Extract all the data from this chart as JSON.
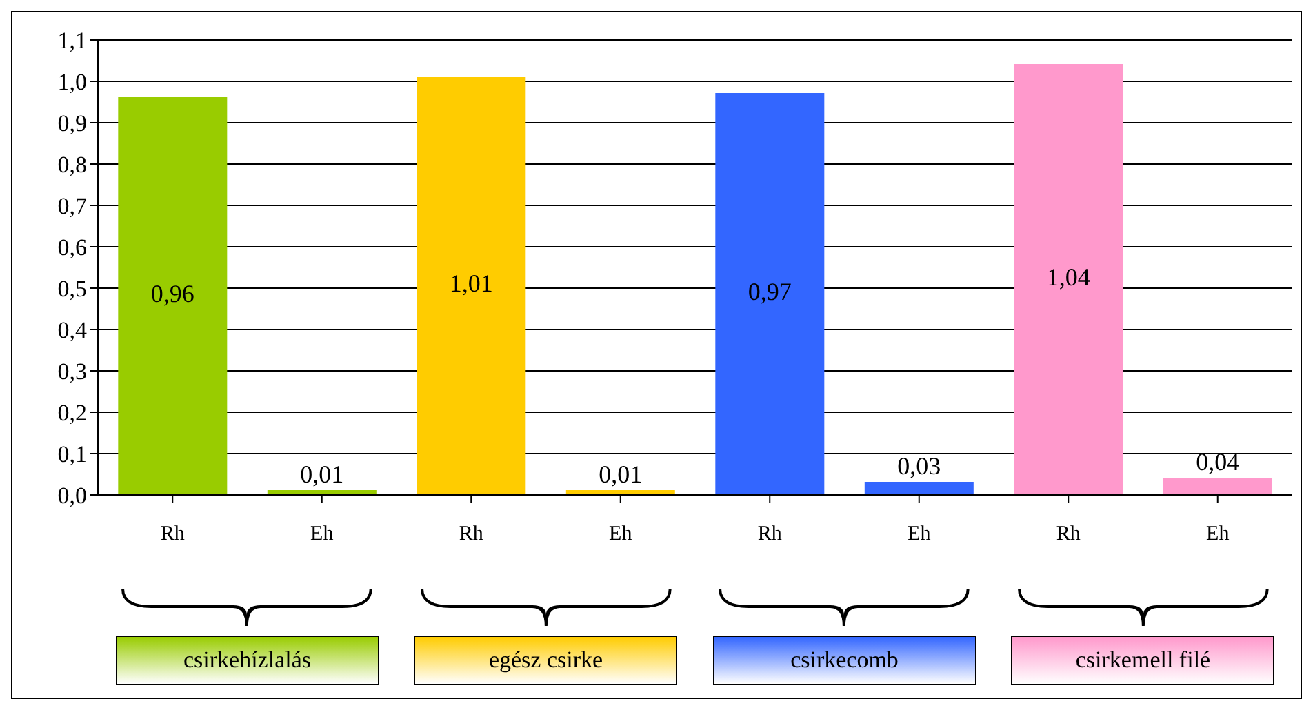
{
  "chart_data": {
    "type": "bar",
    "categories": [
      "Rh",
      "Eh",
      "Rh",
      "Eh",
      "Rh",
      "Eh",
      "Rh",
      "Eh"
    ],
    "series": [
      {
        "name": "csirkehízlalás",
        "color": "#99cc00",
        "values": [
          0.96,
          0.01,
          null,
          null,
          null,
          null,
          null,
          null
        ],
        "value_labels": [
          "0,96",
          "0,01",
          null,
          null,
          null,
          null,
          null,
          null
        ]
      },
      {
        "name": "egész csirke",
        "color": "#ffcc00",
        "values": [
          null,
          null,
          1.01,
          0.01,
          null,
          null,
          null,
          null
        ],
        "value_labels": [
          null,
          null,
          "1,01",
          "0,01",
          null,
          null,
          null,
          null
        ]
      },
      {
        "name": "csirkecomb",
        "color": "#3366ff",
        "values": [
          null,
          null,
          null,
          null,
          0.97,
          0.03,
          null,
          null
        ],
        "value_labels": [
          null,
          null,
          null,
          null,
          "0,97",
          "0,03",
          null,
          null
        ]
      },
      {
        "name": "csirkemell filé",
        "color": "#ff99cc",
        "values": [
          null,
          null,
          null,
          null,
          null,
          null,
          1.04,
          0.04
        ],
        "value_labels": [
          null,
          null,
          null,
          null,
          null,
          null,
          "1,04",
          "0,04"
        ]
      }
    ],
    "stacked": true,
    "grid": "y",
    "legend": "bottom",
    "ylim": [
      0,
      1.1
    ],
    "yticks": [
      {
        "value": 0,
        "label": "0,0"
      },
      {
        "value": 0.1,
        "label": "0,1"
      },
      {
        "value": 0.2,
        "label": "0,2"
      },
      {
        "value": 0.3,
        "label": "0,3"
      },
      {
        "value": 0.4,
        "label": "0,4"
      },
      {
        "value": 0.5,
        "label": "0,5"
      },
      {
        "value": 0.6,
        "label": "0,6"
      },
      {
        "value": 0.7,
        "label": "0,7"
      },
      {
        "value": 0.8,
        "label": "0,8"
      },
      {
        "value": 0.9,
        "label": "0,9"
      },
      {
        "value": 1,
        "label": "1,0"
      },
      {
        "value": 1.1,
        "label": "1,1"
      }
    ]
  }
}
